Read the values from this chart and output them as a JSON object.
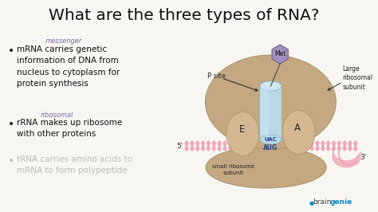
{
  "bg_color": "#f8f6f2",
  "title": "What are the three types of RNA?",
  "title_fontsize": 14.5,
  "title_color": "#111111",
  "bullet1_main": "mRNA carries genetic\ninformation of DNA from\nnucleus to cytoplasm for\nprotein synthesis",
  "bullet1_annotation": "messenger",
  "bullet2_main": "rRNA makes up ribosome\nwith other proteins",
  "bullet2_annotation": "ribosomal",
  "bullet3_main": "tRNA carries amino acids to\nmRNA to form polypeptide",
  "bullet3_color": "#bbbbbb",
  "bullet_color": "#111111",
  "annotation_color": "#7b6aaa",
  "ribosome_tan": "#c4a882",
  "ribosome_tan_dark": "#a8926a",
  "ribosome_tan_light": "#d4b892",
  "tunnel_color": "#b8d8e8",
  "tunnel_edge": "#88aac0",
  "mrna_color": "#f0a8b8",
  "mrna_bump": "#e090a0",
  "met_color": "#a090c0",
  "met_edge": "#706080",
  "text_dark": "#222222",
  "codon_color": "#224488",
  "brain_color": "#444444",
  "genie_color": "#008cc0",
  "brand_text": "braingenie"
}
